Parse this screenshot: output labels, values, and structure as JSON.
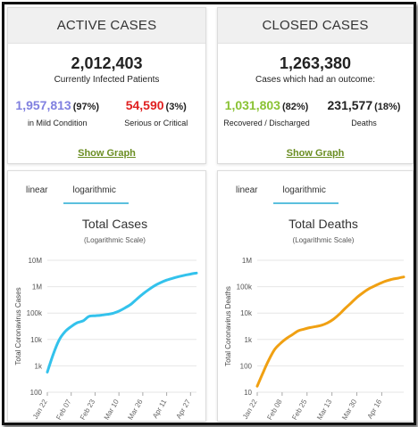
{
  "active": {
    "header": "ACTIVE CASES",
    "total": "2,012,403",
    "total_label": "Currently Infected Patients",
    "mild_value": "1,957,813",
    "mild_pct": "(97%)",
    "mild_label": "in Mild Condition",
    "serious_value": "54,590",
    "serious_pct": "(3%)",
    "serious_label": "Serious or Critical",
    "show_graph": "Show Graph"
  },
  "closed": {
    "header": "CLOSED CASES",
    "total": "1,263,380",
    "total_label": "Cases which had an outcome:",
    "recovered_value": "1,031,803",
    "recovered_pct": "(82%)",
    "recovered_label": "Recovered / Discharged",
    "deaths_value": "231,577",
    "deaths_pct": "(18%)",
    "deaths_label": "Deaths",
    "show_graph": "Show Graph"
  },
  "colors": {
    "mild": "#8080e0",
    "serious": "#e02020",
    "recovered": "#8ac234",
    "cases_line": "#33c2ec",
    "deaths_line": "#f0a012",
    "show_graph": "#6b8e23"
  },
  "chart_tabs": {
    "linear": "linear",
    "logarithmic": "logarithmic"
  },
  "chart_data": [
    {
      "type": "line",
      "title": "Total Cases",
      "subtitle": "(Logarithmic Scale)",
      "ylabel": "Total Coronavirus Cases",
      "y_scale": "log",
      "ylim": [
        100,
        10000000
      ],
      "yticks": [
        100,
        1000,
        10000,
        100000,
        1000000,
        10000000
      ],
      "ytick_labels": [
        "100",
        "1k",
        "10k",
        "100k",
        "1M",
        "10M"
      ],
      "xticks": [
        "Jan 22",
        "Feb 07",
        "Feb 23",
        "Mar 10",
        "Mar 26",
        "Apr 11",
        "Apr 27"
      ],
      "grid": true,
      "x": [
        "Jan 22",
        "Jan 26",
        "Jan 30",
        "Feb 03",
        "Feb 07",
        "Feb 11",
        "Feb 15",
        "Feb 19",
        "Feb 23",
        "Feb 27",
        "Mar 02",
        "Mar 06",
        "Mar 10",
        "Mar 14",
        "Mar 18",
        "Mar 22",
        "Mar 26",
        "Mar 30",
        "Apr 03",
        "Apr 07",
        "Apr 11",
        "Apr 15",
        "Apr 19",
        "Apr 23",
        "Apr 27",
        "May 01"
      ],
      "series": [
        {
          "values": [
            580,
            2800,
            9800,
            20000,
            31000,
            43000,
            51000,
            75000,
            79000,
            83000,
            89000,
            98000,
            119000,
            156000,
            215000,
            340000,
            530000,
            780000,
            1100000,
            1430000,
            1780000,
            2080000,
            2400000,
            2700000,
            3000000,
            3300000
          ]
        }
      ]
    },
    {
      "type": "line",
      "title": "Total Deaths",
      "subtitle": "(Logarithmic Scale)",
      "ylabel": "Total Coronavirus Deaths",
      "y_scale": "log",
      "ylim": [
        10,
        1000000
      ],
      "yticks": [
        10,
        100,
        1000,
        10000,
        100000,
        1000000
      ],
      "ytick_labels": [
        "10",
        "100",
        "1k",
        "10k",
        "100k",
        "1M"
      ],
      "xticks": [
        "Jan 22",
        "Feb 08",
        "Feb 25",
        "Mar 13",
        "Mar 30",
        "Apr 16"
      ],
      "grid": true,
      "x": [
        "Jan 22",
        "Jan 26",
        "Jan 30",
        "Feb 03",
        "Feb 07",
        "Feb 11",
        "Feb 15",
        "Feb 19",
        "Feb 23",
        "Feb 27",
        "Mar 02",
        "Mar 06",
        "Mar 10",
        "Mar 14",
        "Mar 18",
        "Mar 22",
        "Mar 26",
        "Mar 30",
        "Apr 03",
        "Apr 07",
        "Apr 11",
        "Apr 15",
        "Apr 19",
        "Apr 23",
        "Apr 27",
        "May 01"
      ],
      "series": [
        {
          "values": [
            17,
            56,
            170,
            425,
            720,
            1100,
            1520,
            2130,
            2470,
            2810,
            3100,
            3460,
            4260,
            5840,
            8950,
            15000,
            24000,
            39000,
            58000,
            82000,
            106000,
            134000,
            165000,
            190000,
            210000,
            233000
          ]
        }
      ]
    }
  ]
}
